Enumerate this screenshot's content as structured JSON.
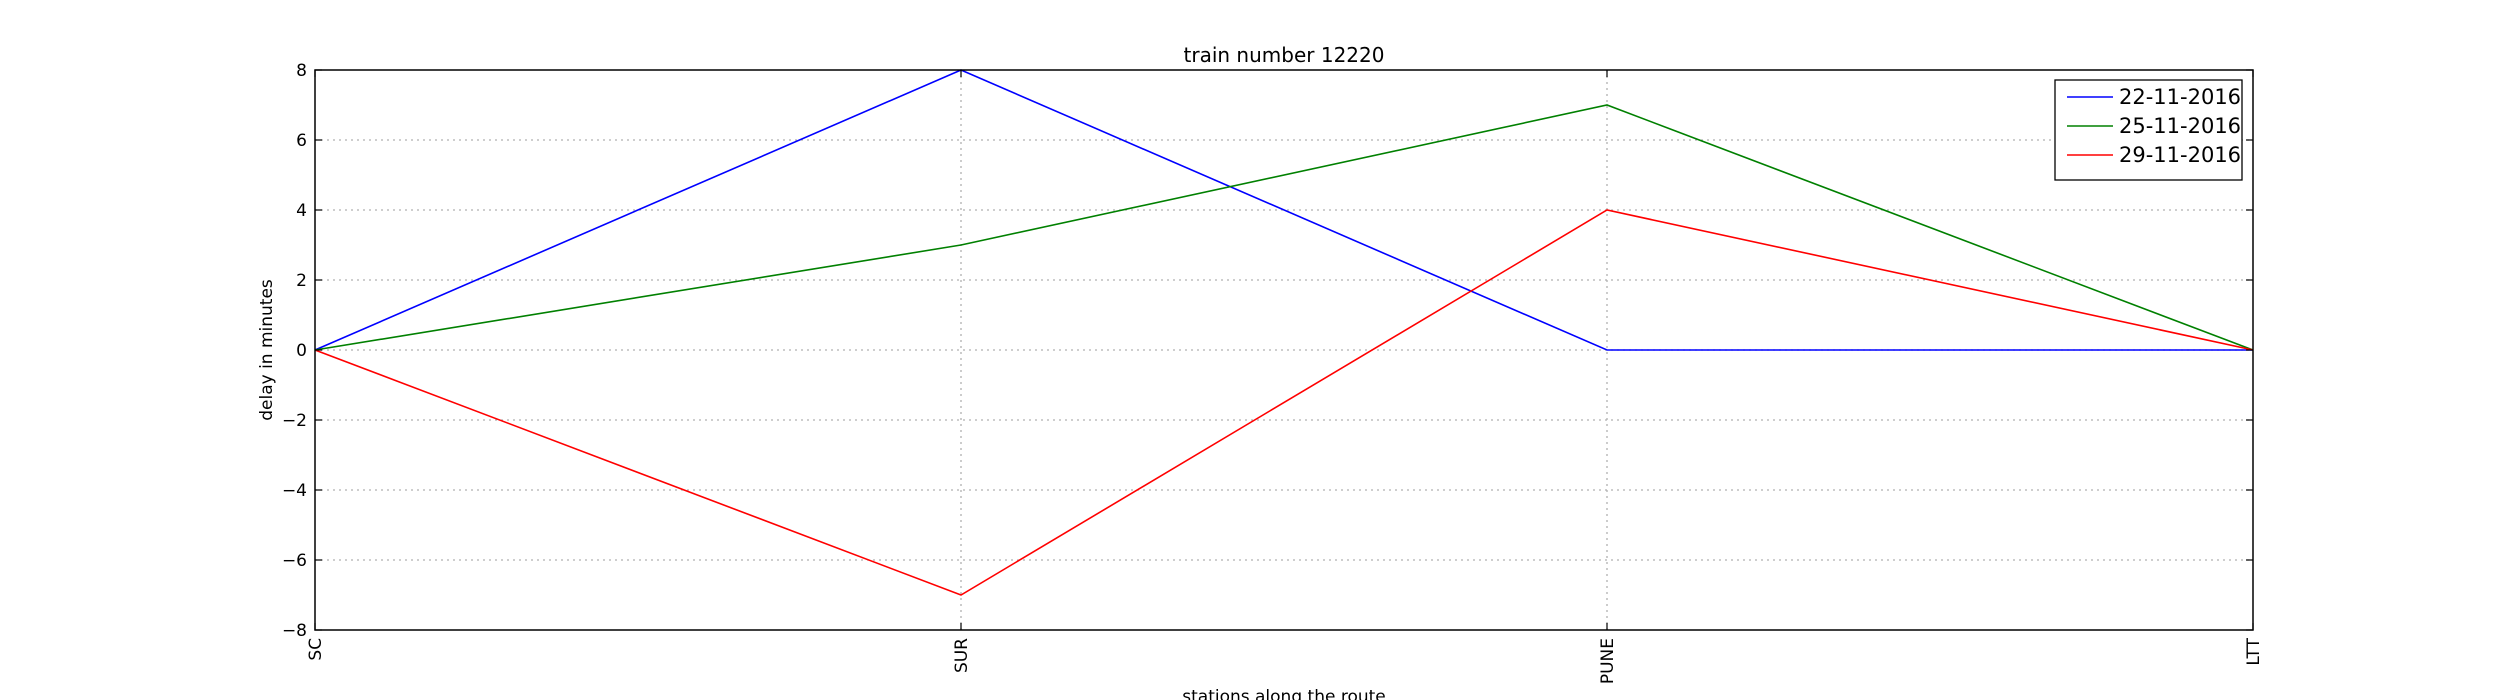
{
  "chart_data": {
    "type": "line",
    "title": "train number 12220",
    "xlabel": "stations along the route",
    "ylabel": "delay in minutes",
    "categories": [
      "SC",
      "SUR",
      "PUNE",
      "LTT"
    ],
    "ylim": [
      -8,
      8
    ],
    "yticks": [
      -8,
      -6,
      -4,
      -2,
      0,
      2,
      4,
      6,
      8
    ],
    "grid": true,
    "legend_position": "top-right",
    "series": [
      {
        "name": "22-11-2016",
        "color": "#0000ff",
        "values": [
          0,
          8,
          0,
          0
        ]
      },
      {
        "name": "25-11-2016",
        "color": "#008000",
        "values": [
          0,
          3,
          7,
          0
        ]
      },
      {
        "name": "29-11-2016",
        "color": "#ff0000",
        "values": [
          0,
          -7,
          4,
          0
        ]
      }
    ]
  }
}
